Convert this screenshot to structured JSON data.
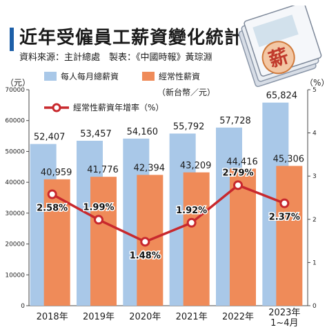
{
  "header": {
    "title": "近年受僱員工薪資變化統計",
    "subtitle": "資料來源：主計總處　製表：《中國時報》黃琮淵"
  },
  "decoration": {
    "stamp_char": "薪"
  },
  "chart_data": {
    "type": "bar",
    "categories": [
      "2018年",
      "2019年",
      "2020年",
      "2021年",
      "2022年",
      "2023年\n1~4月"
    ],
    "series": [
      {
        "name": "每人每月總薪資",
        "type": "bar",
        "color": "#a9c8e8",
        "values": [
          52407,
          53457,
          54160,
          55792,
          57728,
          65824
        ],
        "labels": [
          "52,407",
          "53,457",
          "54,160",
          "55,792",
          "57,728",
          "65,824"
        ]
      },
      {
        "name": "經常性薪資",
        "type": "bar",
        "color": "#ef8b59",
        "values": [
          40959,
          41776,
          42394,
          43209,
          44416,
          45306
        ],
        "labels": [
          "40,959",
          "41,776",
          "42,394",
          "43,209",
          "44,416",
          "45,306"
        ]
      },
      {
        "name": "經常性薪資年增率（%）",
        "type": "line",
        "color": "#c8282d",
        "axis": "right",
        "values": [
          2.58,
          1.99,
          1.48,
          1.92,
          2.79,
          2.37
        ],
        "labels": [
          "2.58%",
          "1.99%",
          "1.48%",
          "1.92%",
          "2.79%",
          "2.37%"
        ]
      }
    ],
    "left_axis": {
      "label": "（元）",
      "ylim": [
        0,
        70000
      ],
      "ticks": [
        "0",
        "10000",
        "20000",
        "30000",
        "40000",
        "50000",
        "60000",
        "70000"
      ]
    },
    "right_axis": {
      "label": "（%）",
      "ylim": [
        0,
        5
      ],
      "ticks": [
        "0",
        "1",
        "2",
        "3",
        "4",
        "5"
      ]
    },
    "unit_note": "（新台幣／元）",
    "legend_position": "top-left",
    "grid": false
  }
}
